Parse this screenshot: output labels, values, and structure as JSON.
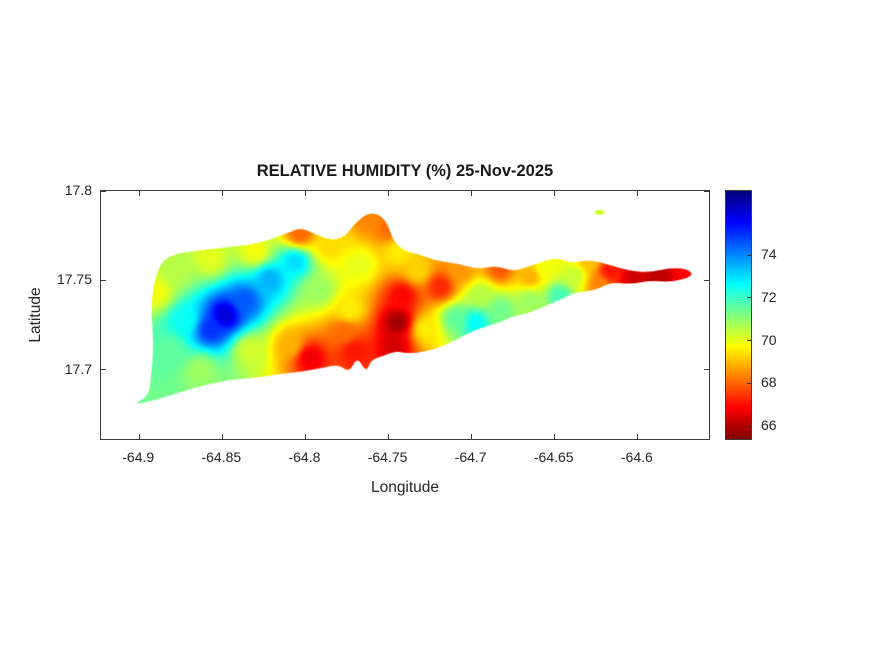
{
  "colors": {
    "background": "#ffffff",
    "axis_line": "#3c3c3c",
    "text": "#262626",
    "title_text": "#1a1a1a"
  },
  "chart_data": {
    "type": "heatmap",
    "title": "RELATIVE HUMIDITY (%) 25-Nov-2025",
    "xlabel": "Longitude",
    "ylabel": "Latitude",
    "xlim": [
      -64.923,
      -64.556
    ],
    "ylim": [
      17.66,
      17.8
    ],
    "xtick_labels": [
      "-64.9",
      "-64.85",
      "-64.8",
      "-64.75",
      "-64.7",
      "-64.65",
      "-64.6"
    ],
    "ytick_labels": [
      "17.8",
      "17.75",
      "17.7"
    ],
    "grid": false,
    "legend": "none",
    "colorbar": {
      "position": "right",
      "min": 65.3,
      "max": 77.0,
      "tick_labels": [
        "74",
        "72",
        "70",
        "68",
        "66"
      ],
      "colormap": "jet-reversed (high=blue, low=red)"
    },
    "background_value": 71.2,
    "background_weight": 40,
    "islet": {
      "lon": -64.622,
      "lat": 17.788,
      "value": 70.2
    },
    "island_outline": [
      [
        -64.9031,
        17.6796
      ],
      [
        -64.8941,
        17.6846
      ],
      [
        -64.8929,
        17.6947
      ],
      [
        -64.8911,
        17.7132
      ],
      [
        -64.8929,
        17.7328
      ],
      [
        -64.8911,
        17.7485
      ],
      [
        -64.8869,
        17.7597
      ],
      [
        -64.8797,
        17.7642
      ],
      [
        -64.8658,
        17.7664
      ],
      [
        -64.8478,
        17.7681
      ],
      [
        -64.8279,
        17.7703
      ],
      [
        -64.8099,
        17.7765
      ],
      [
        -64.8027,
        17.7793
      ],
      [
        -64.7955,
        17.7765
      ],
      [
        -64.7846,
        17.772
      ],
      [
        -64.7756,
        17.7742
      ],
      [
        -64.7696,
        17.7821
      ],
      [
        -64.7618,
        17.7877
      ],
      [
        -64.7545,
        17.7866
      ],
      [
        -64.7497,
        17.781
      ],
      [
        -64.7467,
        17.772
      ],
      [
        -64.7407,
        17.7664
      ],
      [
        -64.7305,
        17.7642
      ],
      [
        -64.7196,
        17.7602
      ],
      [
        -64.7076,
        17.7591
      ],
      [
        -64.6956,
        17.7558
      ],
      [
        -64.6841,
        17.758
      ],
      [
        -64.6751,
        17.7546
      ],
      [
        -64.6661,
        17.7569
      ],
      [
        -64.6565,
        17.7602
      ],
      [
        -64.6474,
        17.7625
      ],
      [
        -64.639,
        17.7591
      ],
      [
        -64.6282,
        17.7614
      ],
      [
        -64.6149,
        17.758
      ],
      [
        -64.6029,
        17.7546
      ],
      [
        -64.5909,
        17.7541
      ],
      [
        -64.5788,
        17.7569
      ],
      [
        -64.568,
        17.7558
      ],
      [
        -64.5656,
        17.7518
      ],
      [
        -64.5788,
        17.7485
      ],
      [
        -64.5909,
        17.7496
      ],
      [
        -64.6029,
        17.7474
      ],
      [
        -64.6149,
        17.7485
      ],
      [
        -64.6245,
        17.744
      ],
      [
        -64.6366,
        17.7429
      ],
      [
        -64.6462,
        17.7384
      ],
      [
        -64.6552,
        17.735
      ],
      [
        -64.6642,
        17.7311
      ],
      [
        -64.6739,
        17.7294
      ],
      [
        -64.6829,
        17.7255
      ],
      [
        -64.6919,
        17.7233
      ],
      [
        -64.7009,
        17.7199
      ],
      [
        -64.71,
        17.7154
      ],
      [
        -64.719,
        17.7115
      ],
      [
        -64.728,
        17.7093
      ],
      [
        -64.7377,
        17.7082
      ],
      [
        -64.7449,
        17.7098
      ],
      [
        -64.7521,
        17.707
      ],
      [
        -64.7599,
        17.7048
      ],
      [
        -64.7629,
        17.6975
      ],
      [
        -64.7683,
        17.7065
      ],
      [
        -64.7732,
        17.6975
      ],
      [
        -64.7792,
        17.702
      ],
      [
        -64.7894,
        17.7003
      ],
      [
        -64.8009,
        17.6981
      ],
      [
        -64.8135,
        17.697
      ],
      [
        -64.8279,
        17.6947
      ],
      [
        -64.8435,
        17.6936
      ],
      [
        -64.8592,
        17.6908
      ],
      [
        -64.8736,
        17.6869
      ],
      [
        -64.8869,
        17.683
      ],
      [
        -64.8959,
        17.6807
      ]
    ],
    "humidity_points": [
      [
        -64.848,
        17.73,
        76.0
      ],
      [
        -64.857,
        17.722,
        75.0
      ],
      [
        -64.836,
        17.738,
        74.5
      ],
      [
        -64.821,
        17.75,
        73.5
      ],
      [
        -64.806,
        17.76,
        73.0
      ],
      [
        -64.872,
        17.727,
        72.5
      ],
      [
        -64.881,
        17.71,
        71.5
      ],
      [
        -64.899,
        17.682,
        71.3
      ],
      [
        -64.863,
        17.699,
        70.8
      ],
      [
        -64.833,
        17.71,
        70.2
      ],
      [
        -64.89,
        17.743,
        69.8
      ],
      [
        -64.878,
        17.755,
        70.5
      ],
      [
        -64.857,
        17.762,
        70.0
      ],
      [
        -64.83,
        17.766,
        69.8
      ],
      [
        -64.803,
        17.776,
        68.0
      ],
      [
        -64.785,
        17.769,
        69.3
      ],
      [
        -64.762,
        17.785,
        68.3
      ],
      [
        -64.749,
        17.779,
        68.0
      ],
      [
        -64.743,
        17.766,
        69.5
      ],
      [
        -64.767,
        17.758,
        70.0
      ],
      [
        -64.791,
        17.744,
        70.8
      ],
      [
        -64.773,
        17.733,
        69.5
      ],
      [
        -64.776,
        17.72,
        68.0
      ],
      [
        -64.77,
        17.71,
        67.0
      ],
      [
        -64.797,
        17.706,
        66.6
      ],
      [
        -64.809,
        17.713,
        68.8
      ],
      [
        -64.744,
        17.726,
        65.7
      ],
      [
        -64.746,
        17.713,
        66.3
      ],
      [
        -64.741,
        17.741,
        66.8
      ],
      [
        -64.732,
        17.755,
        69.2
      ],
      [
        -64.727,
        17.722,
        69.5
      ],
      [
        -64.718,
        17.746,
        67.2
      ],
      [
        -64.706,
        17.755,
        68.5
      ],
      [
        -64.682,
        17.756,
        67.8
      ],
      [
        -64.664,
        17.752,
        68.8
      ],
      [
        -64.697,
        17.726,
        72.6
      ],
      [
        -64.709,
        17.728,
        71.5
      ],
      [
        -64.682,
        17.733,
        71.3
      ],
      [
        -64.694,
        17.741,
        70.5
      ],
      [
        -64.664,
        17.738,
        70.8
      ],
      [
        -64.646,
        17.741,
        71.8
      ],
      [
        -64.655,
        17.756,
        69.8
      ],
      [
        -64.637,
        17.752,
        70.3
      ],
      [
        -64.622,
        17.747,
        68.3
      ],
      [
        -64.616,
        17.755,
        67.0
      ],
      [
        -64.601,
        17.751,
        66.2
      ],
      [
        -64.586,
        17.752,
        66.0
      ],
      [
        -64.571,
        17.754,
        66.8
      ],
      [
        -64.628,
        17.76,
        69.0
      ],
      [
        -64.622,
        17.788,
        70.2
      ]
    ]
  }
}
